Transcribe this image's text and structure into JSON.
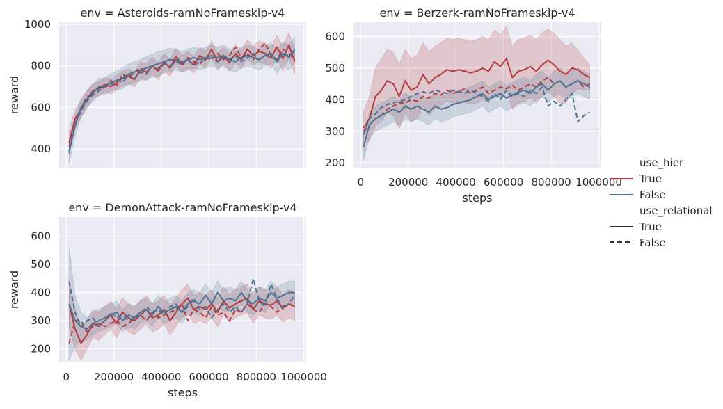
{
  "colors": {
    "hier_true": "#b4393e",
    "hier_false": "#4a7293",
    "plot_bg": "#eaeaf2",
    "grid": "#ffffff"
  },
  "legend": {
    "hier_title": "use_hier",
    "hier_true_label": "True",
    "hier_false_label": "False",
    "rel_title": "use_relational",
    "rel_true_label": "True",
    "rel_false_label": "False"
  },
  "chart_data": [
    {
      "type": "line",
      "title": "env = Asteroids-ramNoFrameskip-v4",
      "xlabel": "",
      "ylabel": "reward",
      "xlim": [
        -30000,
        1010000
      ],
      "ylim": [
        310,
        1010
      ],
      "yticks": [
        400,
        600,
        800,
        1000
      ],
      "xticks": [
        0,
        200000,
        400000,
        600000,
        800000,
        1000000
      ],
      "show_xtick_labels": false,
      "grid": true,
      "x": [
        12000,
        37000,
        62000,
        87000,
        112000,
        137000,
        162000,
        187000,
        212000,
        237000,
        262000,
        287000,
        312000,
        337000,
        362000,
        387000,
        412000,
        437000,
        462000,
        487000,
        512000,
        537000,
        562000,
        587000,
        612000,
        637000,
        662000,
        687000,
        712000,
        737000,
        762000,
        787000,
        812000,
        837000,
        862000,
        887000,
        912000,
        937000,
        962000
      ],
      "series": [
        {
          "use_hier": "True",
          "use_relational": "True",
          "values": [
            430,
            545,
            590,
            640,
            680,
            690,
            710,
            700,
            720,
            740,
            750,
            735,
            780,
            770,
            800,
            775,
            820,
            790,
            845,
            810,
            830,
            805,
            850,
            830,
            880,
            820,
            850,
            815,
            860,
            830,
            880,
            850,
            870,
            860,
            840,
            890,
            835,
            900,
            820
          ],
          "band": [
            60,
            45,
            40,
            40,
            35,
            35,
            35,
            35,
            35,
            35,
            35,
            35,
            40,
            40,
            40,
            40,
            40,
            40,
            40,
            40,
            40,
            40,
            40,
            40,
            40,
            40,
            40,
            40,
            45,
            45,
            45,
            45,
            50,
            50,
            50,
            55,
            60,
            60,
            60
          ]
        },
        {
          "use_hier": "True",
          "use_relational": "False",
          "values": [
            410,
            520,
            600,
            650,
            670,
            700,
            690,
            730,
            705,
            760,
            740,
            770,
            790,
            760,
            800,
            780,
            810,
            790,
            830,
            800,
            840,
            820,
            810,
            840,
            830,
            860,
            830,
            850,
            890,
            840,
            860,
            830,
            880,
            910,
            850,
            830,
            880,
            860,
            830
          ],
          "band": []
        },
        {
          "use_hier": "False",
          "use_relational": "True",
          "values": [
            390,
            510,
            600,
            640,
            670,
            700,
            700,
            720,
            730,
            740,
            760,
            770,
            780,
            790,
            800,
            810,
            820,
            830,
            830,
            820,
            830,
            840,
            830,
            840,
            850,
            840,
            850,
            830,
            820,
            840,
            850,
            840,
            830,
            850,
            860,
            820,
            860,
            840,
            880
          ],
          "band": [
            60,
            50,
            45,
            40,
            40,
            40,
            40,
            40,
            45,
            50,
            50,
            50,
            50,
            55,
            55,
            60,
            55,
            55,
            50,
            50,
            50,
            50,
            50,
            50,
            50,
            50,
            50,
            50,
            50,
            50,
            50,
            50,
            50,
            50,
            50,
            55,
            55,
            60,
            60
          ]
        },
        {
          "use_hier": "False",
          "use_relational": "False",
          "values": [
            380,
            520,
            580,
            630,
            660,
            680,
            700,
            710,
            730,
            720,
            760,
            740,
            770,
            760,
            800,
            790,
            810,
            800,
            820,
            810,
            830,
            800,
            820,
            830,
            840,
            820,
            840,
            830,
            850,
            820,
            840,
            860,
            830,
            850,
            840,
            830,
            860,
            850,
            870
          ],
          "band": []
        }
      ]
    },
    {
      "type": "line",
      "title": "env = Berzerk-ramNoFrameskip-v4",
      "xlabel": "steps",
      "ylabel": "",
      "xlim": [
        -30000,
        1010000
      ],
      "ylim": [
        185,
        645
      ],
      "yticks": [
        200,
        300,
        400,
        500,
        600
      ],
      "xticks": [
        0,
        200000,
        400000,
        600000,
        800000,
        1000000
      ],
      "show_xtick_labels": true,
      "grid": true,
      "x": [
        12000,
        37000,
        62000,
        87000,
        112000,
        137000,
        162000,
        187000,
        212000,
        237000,
        262000,
        287000,
        312000,
        337000,
        362000,
        387000,
        412000,
        437000,
        462000,
        487000,
        512000,
        537000,
        562000,
        587000,
        612000,
        637000,
        662000,
        687000,
        712000,
        737000,
        762000,
        787000,
        812000,
        837000,
        862000,
        887000,
        912000,
        937000,
        962000
      ],
      "series": [
        {
          "use_hier": "True",
          "use_relational": "True",
          "values": [
            310,
            340,
            410,
            430,
            460,
            450,
            410,
            460,
            430,
            440,
            480,
            450,
            470,
            480,
            495,
            490,
            495,
            490,
            485,
            490,
            500,
            490,
            520,
            505,
            530,
            470,
            490,
            495,
            505,
            490,
            510,
            525,
            510,
            490,
            480,
            500,
            495,
            480,
            470
          ],
          "band": [
            50,
            70,
            90,
            100,
            100,
            100,
            100,
            100,
            100,
            100,
            100,
            100,
            100,
            100,
            100,
            100,
            100,
            100,
            100,
            100,
            100,
            100,
            100,
            100,
            100,
            100,
            100,
            100,
            100,
            100,
            100,
            100,
            100,
            100,
            90,
            80,
            60,
            50,
            40
          ]
        },
        {
          "use_hier": "True",
          "use_relational": "False",
          "values": [
            300,
            320,
            340,
            350,
            370,
            380,
            390,
            390,
            400,
            395,
            410,
            405,
            420,
            415,
            430,
            420,
            425,
            435,
            420,
            430,
            440,
            420,
            430,
            440,
            435,
            445,
            430,
            440,
            450,
            440,
            460,
            470,
            450,
            460,
            440,
            450,
            460,
            440,
            450
          ],
          "band": []
        },
        {
          "use_hier": "False",
          "use_relational": "True",
          "values": [
            250,
            320,
            340,
            350,
            360,
            370,
            360,
            380,
            370,
            380,
            370,
            360,
            380,
            370,
            375,
            385,
            390,
            395,
            400,
            410,
            420,
            400,
            410,
            420,
            405,
            415,
            425,
            430,
            420,
            440,
            450,
            430,
            450,
            460,
            440,
            450,
            460,
            450,
            440
          ],
          "band": [
            40,
            40,
            40,
            40,
            40,
            40,
            40,
            40,
            40,
            40,
            40,
            40,
            40,
            40,
            40,
            40,
            40,
            40,
            40,
            40,
            40,
            40,
            40,
            40,
            40,
            40,
            40,
            40,
            40,
            40,
            40,
            40,
            40,
            40,
            40,
            40,
            40,
            40,
            40
          ]
        },
        {
          "use_hier": "False",
          "use_relational": "False",
          "values": [
            290,
            340,
            355,
            375,
            385,
            390,
            395,
            400,
            410,
            420,
            425,
            420,
            430,
            425,
            420,
            430,
            425,
            420,
            430,
            420,
            410,
            395,
            420,
            400,
            430,
            410,
            420,
            410,
            430,
            420,
            440,
            380,
            395,
            380,
            400,
            420,
            330,
            350,
            360
          ],
          "band": []
        }
      ]
    },
    {
      "type": "line",
      "title": "env = DemonAttack-ramNoFrameskip-v4",
      "xlabel": "steps",
      "ylabel": "reward",
      "xlim": [
        -30000,
        1010000
      ],
      "ylim": [
        152,
        668
      ],
      "yticks": [
        200,
        300,
        400,
        500,
        600
      ],
      "xticks": [
        0,
        200000,
        400000,
        600000,
        800000,
        1000000
      ],
      "show_xtick_labels": true,
      "grid": true,
      "x": [
        12000,
        37000,
        62000,
        87000,
        112000,
        137000,
        162000,
        187000,
        212000,
        237000,
        262000,
        287000,
        312000,
        337000,
        362000,
        387000,
        412000,
        437000,
        462000,
        487000,
        512000,
        537000,
        562000,
        587000,
        612000,
        637000,
        662000,
        687000,
        712000,
        737000,
        762000,
        787000,
        812000,
        837000,
        862000,
        887000,
        912000,
        937000,
        962000
      ],
      "series": [
        {
          "use_hier": "True",
          "use_relational": "True",
          "values": [
            360,
            270,
            220,
            250,
            290,
            280,
            300,
            320,
            290,
            330,
            310,
            300,
            320,
            340,
            310,
            320,
            340,
            300,
            330,
            360,
            380,
            340,
            350,
            340,
            360,
            330,
            370,
            345,
            360,
            370,
            380,
            340,
            370,
            360,
            355,
            370,
            345,
            360,
            350
          ],
          "band": [
            80,
            70,
            60,
            50,
            50,
            50,
            50,
            50,
            50,
            50,
            50,
            50,
            50,
            50,
            50,
            50,
            50,
            50,
            50,
            50,
            50,
            50,
            50,
            50,
            50,
            50,
            50,
            50,
            50,
            50,
            50,
            50,
            50,
            50,
            50,
            50,
            50,
            50,
            50
          ]
        },
        {
          "use_hier": "True",
          "use_relational": "False",
          "values": [
            220,
            300,
            300,
            260,
            280,
            290,
            280,
            290,
            300,
            280,
            290,
            310,
            320,
            300,
            330,
            310,
            320,
            330,
            340,
            360,
            300,
            340,
            330,
            310,
            350,
            320,
            330,
            300,
            340,
            330,
            360,
            340,
            330,
            360,
            350,
            330,
            350,
            360,
            350
          ],
          "band": []
        },
        {
          "use_hier": "False",
          "use_relational": "True",
          "values": [
            360,
            300,
            280,
            270,
            290,
            300,
            310,
            320,
            330,
            300,
            320,
            310,
            330,
            340,
            320,
            350,
            330,
            340,
            350,
            330,
            360,
            370,
            360,
            390,
            360,
            400,
            370,
            380,
            370,
            400,
            370,
            360,
            380,
            370,
            400,
            380,
            390,
            400,
            400
          ],
          "band": [
            200,
            90,
            50,
            40,
            40,
            40,
            40,
            40,
            40,
            40,
            40,
            40,
            40,
            40,
            40,
            40,
            40,
            40,
            40,
            40,
            40,
            40,
            40,
            40,
            40,
            40,
            40,
            40,
            40,
            40,
            40,
            40,
            40,
            40,
            40,
            40,
            40,
            40,
            40
          ]
        },
        {
          "use_hier": "False",
          "use_relational": "False",
          "values": [
            440,
            330,
            280,
            300,
            310,
            280,
            300,
            330,
            310,
            320,
            300,
            310,
            320,
            350,
            330,
            340,
            320,
            350,
            360,
            330,
            350,
            380,
            340,
            350,
            310,
            340,
            360,
            330,
            350,
            330,
            360,
            450,
            370,
            350,
            430,
            380,
            340,
            360,
            390
          ],
          "band": []
        }
      ]
    }
  ]
}
